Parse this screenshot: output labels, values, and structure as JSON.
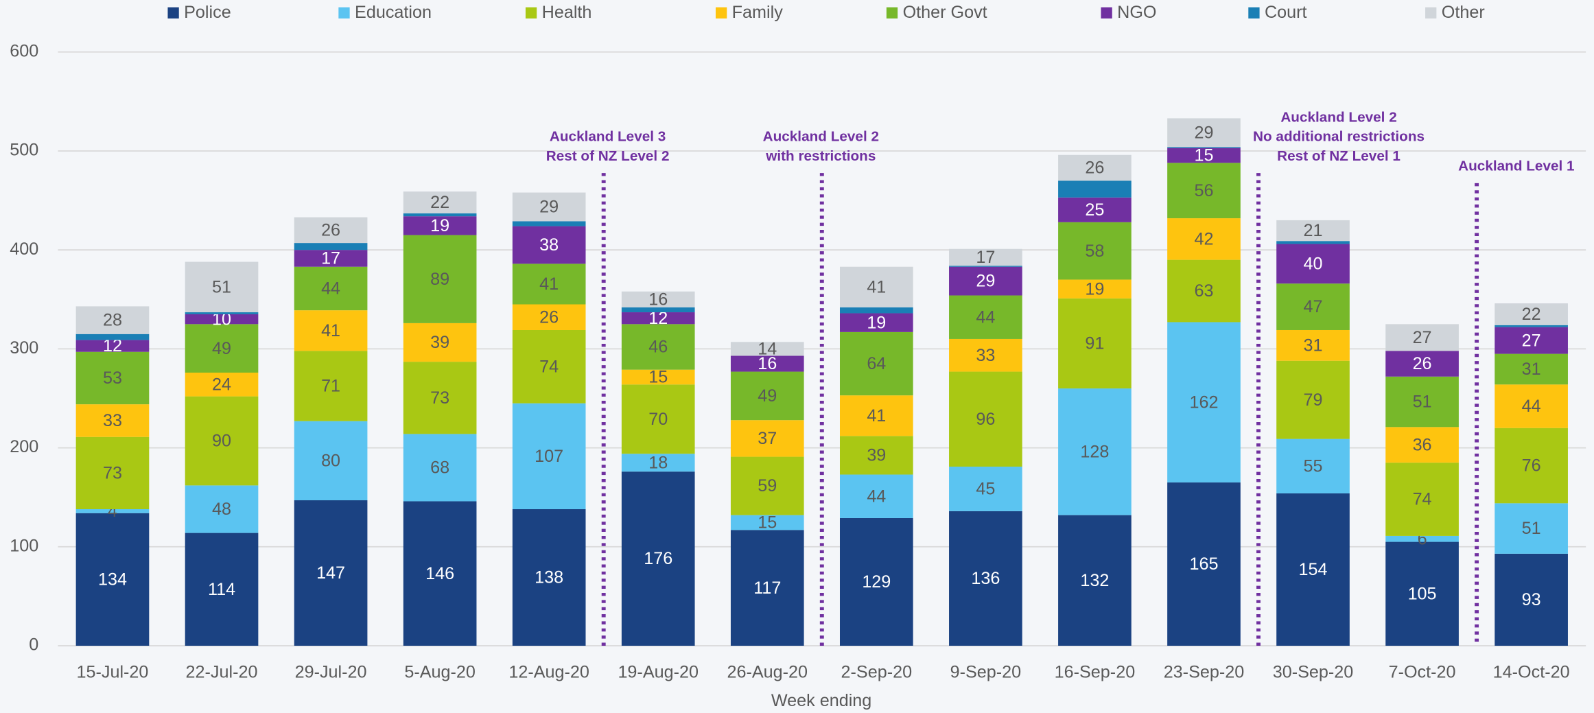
{
  "chart_data": {
    "type": "stacked_bar",
    "x_label": "Week ending",
    "categories": [
      "15-Jul-20",
      "22-Jul-20",
      "29-Jul-20",
      "5-Aug-20",
      "12-Aug-20",
      "19-Aug-20",
      "26-Aug-20",
      "2-Sep-20",
      "9-Sep-20",
      "16-Sep-20",
      "23-Sep-20",
      "30-Sep-20",
      "7-Oct-20",
      "14-Oct-20"
    ],
    "series": [
      {
        "name": "Police",
        "color": "#1b4282",
        "show_labels": true,
        "label_color": "#ffffff",
        "values": [
          134,
          114,
          147,
          146,
          138,
          176,
          117,
          129,
          136,
          132,
          165,
          154,
          105,
          93
        ]
      },
      {
        "name": "Education",
        "color": "#5bc4f1",
        "show_labels": true,
        "label_color": "#595959",
        "values": [
          4,
          48,
          80,
          68,
          107,
          18,
          15,
          44,
          45,
          128,
          162,
          55,
          6,
          51
        ]
      },
      {
        "name": "Health",
        "color": "#a9c814",
        "show_labels": true,
        "label_color": "#595959",
        "values": [
          73,
          90,
          71,
          73,
          74,
          70,
          59,
          39,
          96,
          91,
          63,
          79,
          74,
          76
        ]
      },
      {
        "name": "Family",
        "color": "#fec40f",
        "show_labels": true,
        "label_color": "#595959",
        "values": [
          33,
          24,
          41,
          39,
          26,
          15,
          37,
          41,
          33,
          19,
          42,
          31,
          36,
          44
        ]
      },
      {
        "name": "Other Govt",
        "color": "#77b82a",
        "show_labels": true,
        "label_color": "#595959",
        "values": [
          53,
          49,
          44,
          89,
          41,
          46,
          49,
          64,
          44,
          58,
          56,
          47,
          51,
          31
        ]
      },
      {
        "name": "NGO",
        "color": "#7030a0",
        "show_labels": true,
        "label_color": "#ffffff",
        "values": [
          12,
          10,
          17,
          19,
          38,
          12,
          16,
          19,
          29,
          25,
          15,
          40,
          26,
          27
        ]
      },
      {
        "name": "Court",
        "color": "#1a7fb5",
        "show_labels": false,
        "label_color": "#ffffff",
        "values": [
          6,
          2,
          7,
          3,
          5,
          5,
          0,
          6,
          1,
          17,
          1,
          3,
          0,
          2
        ]
      },
      {
        "name": "Other",
        "color": "#d0d5da",
        "show_labels": true,
        "label_color": "#595959",
        "values": [
          28,
          51,
          26,
          22,
          29,
          16,
          14,
          41,
          17,
          26,
          29,
          21,
          27,
          22
        ]
      }
    ],
    "ylim": [
      0,
      600
    ],
    "yticks": [
      0,
      100,
      200,
      300,
      400,
      500,
      600
    ],
    "grid": true,
    "legend": "top",
    "annotations": [
      {
        "lines": [
          "Auckland Level 3",
          "Rest of NZ Level 2"
        ],
        "after": "12-Aug-20",
        "color": "#7030a0"
      },
      {
        "lines": [
          "Auckland Level 2",
          "with restrictions"
        ],
        "after": "26-Aug-20",
        "color": "#7030a0"
      },
      {
        "lines": [
          "Auckland Level 2",
          "No additional restrictions",
          "Rest of NZ Level 1"
        ],
        "after": "23-Sep-20",
        "color": "#7030a0"
      },
      {
        "lines": [
          "Auckland Level 1"
        ],
        "after": "7-Oct-20",
        "color": "#7030a0"
      }
    ]
  }
}
